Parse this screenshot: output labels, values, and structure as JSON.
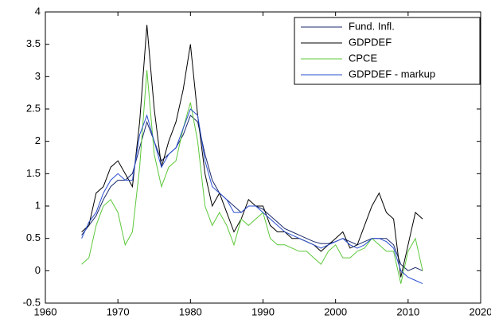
{
  "chart_data": {
    "type": "line",
    "x": [
      1965,
      1966,
      1967,
      1968,
      1969,
      1970,
      1971,
      1972,
      1973,
      1974,
      1975,
      1976,
      1977,
      1978,
      1979,
      1980,
      1981,
      1982,
      1983,
      1984,
      1985,
      1986,
      1987,
      1988,
      1989,
      1990,
      1991,
      1992,
      1993,
      1994,
      1995,
      1996,
      1997,
      1998,
      1999,
      2000,
      2001,
      2002,
      2003,
      2004,
      2005,
      2006,
      2007,
      2008,
      2009,
      2010,
      2011,
      2012
    ],
    "series": [
      {
        "name": "Fund. Infl.",
        "color": "#1a2a6c",
        "values": [
          0.55,
          0.7,
          0.85,
          1.1,
          1.3,
          1.4,
          1.4,
          1.5,
          1.9,
          2.3,
          2.0,
          1.7,
          1.8,
          1.9,
          2.1,
          2.4,
          2.3,
          1.8,
          1.4,
          1.2,
          1.1,
          1.0,
          0.9,
          1.0,
          1.0,
          0.95,
          0.85,
          0.75,
          0.65,
          0.6,
          0.55,
          0.5,
          0.45,
          0.42,
          0.42,
          0.45,
          0.5,
          0.45,
          0.4,
          0.45,
          0.5,
          0.5,
          0.5,
          0.4,
          0.1,
          0.0,
          0.05,
          0.0
        ]
      },
      {
        "name": "GDPDEF",
        "color": "#000000",
        "values": [
          0.6,
          0.7,
          1.2,
          1.3,
          1.6,
          1.7,
          1.5,
          1.3,
          2.3,
          3.8,
          2.5,
          1.6,
          2.0,
          2.3,
          2.8,
          3.5,
          2.4,
          1.5,
          1.0,
          1.2,
          0.9,
          0.6,
          0.8,
          1.1,
          1.0,
          1.0,
          0.7,
          0.6,
          0.6,
          0.5,
          0.5,
          0.45,
          0.4,
          0.3,
          0.4,
          0.5,
          0.6,
          0.35,
          0.4,
          0.7,
          1.0,
          1.2,
          0.9,
          0.8,
          -0.1,
          0.4,
          0.9,
          0.8
        ]
      },
      {
        "name": "CPCE",
        "color": "#5cc83a",
        "values": [
          0.1,
          0.2,
          0.7,
          1.0,
          1.1,
          0.9,
          0.4,
          0.6,
          1.6,
          3.1,
          1.8,
          1.3,
          1.6,
          1.7,
          2.2,
          2.6,
          2.0,
          1.0,
          0.7,
          0.9,
          0.7,
          0.4,
          0.8,
          0.7,
          0.8,
          0.9,
          0.5,
          0.4,
          0.4,
          0.35,
          0.3,
          0.3,
          0.2,
          0.1,
          0.3,
          0.4,
          0.2,
          0.2,
          0.3,
          0.35,
          0.5,
          0.4,
          0.3,
          0.3,
          -0.2,
          0.3,
          0.5,
          0.0
        ]
      },
      {
        "name": "GDPDEF - markup",
        "color": "#2b4fd0",
        "values": [
          0.5,
          0.75,
          0.9,
          1.2,
          1.4,
          1.5,
          1.4,
          1.4,
          2.1,
          2.4,
          2.0,
          1.6,
          1.8,
          1.9,
          2.2,
          2.5,
          2.4,
          1.7,
          1.3,
          1.2,
          1.1,
          0.9,
          0.9,
          1.0,
          1.0,
          0.9,
          0.8,
          0.7,
          0.6,
          0.55,
          0.5,
          0.45,
          0.4,
          0.35,
          0.4,
          0.45,
          0.5,
          0.4,
          0.35,
          0.4,
          0.5,
          0.5,
          0.45,
          0.35,
          0.0,
          -0.1,
          -0.15,
          -0.2
        ]
      }
    ],
    "xlim": [
      1960,
      2020
    ],
    "xticks": [
      1960,
      1970,
      1980,
      1990,
      2000,
      2010,
      2020
    ],
    "ylim": [
      -0.5,
      4
    ],
    "yticks": [
      -0.5,
      0,
      0.5,
      1,
      1.5,
      2,
      2.5,
      3,
      3.5,
      4
    ],
    "grid": false,
    "legend": "upper-right"
  }
}
